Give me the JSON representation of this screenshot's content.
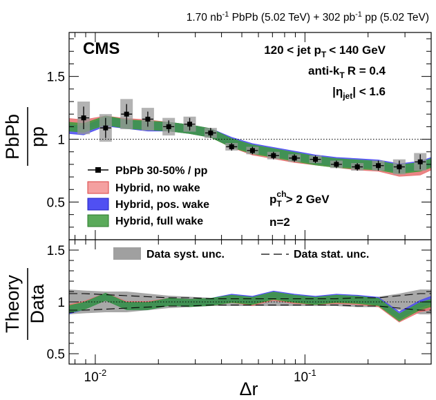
{
  "header": {
    "lumi_pbpb": "1.70",
    "unit1": "nb",
    "exp1": "-1",
    "sys1": "PbPb (5.02 TeV) +",
    "lumi_pp": "302",
    "unit2": "pb",
    "exp2": "-1",
    "sys2": "pp (5.02 TeV)"
  },
  "labels": {
    "cms": "CMS",
    "jet_pt_a": "120 < jet p",
    "jet_pt_sub": "T",
    "jet_pt_b": "< 140 GeV",
    "algo_a": "anti-k",
    "algo_sub": "T",
    "algo_b": "R = 0.4",
    "eta_a": "|η",
    "eta_sub": "jet",
    "eta_b": "| < 1.6",
    "track_a": "p",
    "track_sup": "ch",
    "track_sub": "T",
    "track_b": "> 2 GeV",
    "n": "n=2"
  },
  "legend_top": [
    {
      "label": "PbPb 30-50% / pp",
      "kind": "marker",
      "color": "#000000"
    },
    {
      "label": "Hybrid, no wake",
      "kind": "box",
      "color": "#f08080"
    },
    {
      "label": "Hybrid, pos. wake",
      "kind": "box",
      "color": "#4040ee"
    },
    {
      "label": "Hybrid, full wake",
      "kind": "box",
      "color": "#3a9a3a"
    }
  ],
  "legend_bottom": {
    "syst": "Data syst. unc.",
    "stat": "Data stat. unc."
  },
  "chart_data": [
    {
      "type": "line",
      "panel": "top",
      "ylabel_num": "PbPb",
      "ylabel_den": "pp",
      "xscale": "log",
      "xlim": [
        0.0075,
        0.4
      ],
      "ylim": [
        0.2,
        1.85
      ],
      "yticks": [
        "0.5",
        "1",
        "1.5"
      ],
      "reference_line": 1,
      "data": {
        "x": [
          0.0088,
          0.0112,
          0.0141,
          0.0178,
          0.0224,
          0.0282,
          0.0355,
          0.0447,
          0.0562,
          0.0708,
          0.0891,
          0.1122,
          0.1413,
          0.1778,
          0.2239,
          0.2818,
          0.3548
        ],
        "y": [
          1.17,
          1.09,
          1.2,
          1.16,
          1.1,
          1.12,
          1.05,
          0.94,
          0.91,
          0.87,
          0.85,
          0.84,
          0.8,
          0.78,
          0.79,
          0.78,
          0.82
        ],
        "stat": [
          0.09,
          0.08,
          0.08,
          0.06,
          0.05,
          0.05,
          0.04,
          0.03,
          0.03,
          0.03,
          0.03,
          0.03,
          0.03,
          0.03,
          0.04,
          0.05,
          0.06
        ],
        "syst": [
          0.13,
          0.11,
          0.12,
          0.09,
          0.07,
          0.06,
          0.04,
          0.03,
          0.03,
          0.03,
          0.03,
          0.03,
          0.03,
          0.03,
          0.04,
          0.06,
          0.07
        ]
      },
      "series": [
        {
          "name": "Hybrid, no wake",
          "color": "#e87070",
          "x": [
            0.0075,
            0.0088,
            0.0112,
            0.0141,
            0.0178,
            0.0224,
            0.0282,
            0.0355,
            0.0447,
            0.0562,
            0.0708,
            0.0891,
            0.1122,
            0.1413,
            0.1778,
            0.2239,
            0.2818,
            0.3548,
            0.4
          ],
          "values": [
            1.13,
            1.12,
            1.15,
            1.13,
            1.12,
            1.1,
            1.08,
            1.05,
            0.97,
            0.91,
            0.88,
            0.85,
            0.83,
            0.81,
            0.79,
            0.78,
            0.74,
            0.75,
            0.79
          ],
          "band": 0.035
        },
        {
          "name": "Hybrid, pos. wake",
          "color": "#4a4af0",
          "x": [
            0.0075,
            0.0088,
            0.0112,
            0.0141,
            0.0178,
            0.0224,
            0.0282,
            0.0355,
            0.0447,
            0.0562,
            0.0708,
            0.0891,
            0.1122,
            0.1413,
            0.1778,
            0.2239,
            0.2818,
            0.3548,
            0.4
          ],
          "values": [
            1.08,
            1.07,
            1.14,
            1.12,
            1.1,
            1.1,
            1.08,
            1.05,
            0.98,
            0.93,
            0.9,
            0.87,
            0.84,
            0.82,
            0.81,
            0.8,
            0.77,
            0.79,
            0.82
          ],
          "band": 0.035
        },
        {
          "name": "Hybrid, full wake",
          "color": "#3c9c3c",
          "x": [
            0.0075,
            0.0088,
            0.0112,
            0.0141,
            0.0178,
            0.0224,
            0.0282,
            0.0355,
            0.0447,
            0.0562,
            0.0708,
            0.0891,
            0.1122,
            0.1413,
            0.1778,
            0.2239,
            0.2818,
            0.3548,
            0.4
          ],
          "values": [
            1.1,
            1.09,
            1.15,
            1.12,
            1.11,
            1.1,
            1.08,
            1.05,
            0.97,
            0.92,
            0.89,
            0.86,
            0.83,
            0.81,
            0.8,
            0.79,
            0.76,
            0.78,
            0.81
          ],
          "band": 0.035
        }
      ]
    },
    {
      "type": "line",
      "panel": "bottom",
      "ylabel_num": "Theory",
      "ylabel_den": "Data",
      "xlabel": "Δr",
      "xscale": "log",
      "xlim": [
        0.0075,
        0.4
      ],
      "ylim": [
        0.4,
        1.6
      ],
      "yticks": [
        "0.5",
        "1",
        "1.5"
      ],
      "xticks": [
        {
          "value": 0.01,
          "base": "10",
          "exp": "-2"
        },
        {
          "value": 0.1,
          "base": "10",
          "exp": "-1"
        }
      ],
      "reference_line": 1,
      "syst_band": {
        "x": [
          0.0075,
          0.0088,
          0.0112,
          0.0141,
          0.0178,
          0.0224,
          0.0282,
          0.0355,
          0.0447,
          0.0562,
          0.0708,
          0.0891,
          0.1122,
          0.1413,
          0.1778,
          0.2239,
          0.2818,
          0.3548,
          0.4
        ],
        "upper": [
          1.12,
          1.11,
          1.1,
          1.1,
          1.08,
          1.06,
          1.05,
          1.04,
          1.04,
          1.04,
          1.04,
          1.04,
          1.04,
          1.04,
          1.05,
          1.05,
          1.08,
          1.12,
          1.12
        ],
        "lower": [
          0.88,
          0.89,
          0.9,
          0.9,
          0.92,
          0.94,
          0.95,
          0.96,
          0.96,
          0.96,
          0.96,
          0.96,
          0.96,
          0.96,
          0.95,
          0.95,
          0.92,
          0.88,
          0.88
        ]
      },
      "stat_band": {
        "x": [
          0.0075,
          0.0088,
          0.0112,
          0.0141,
          0.0178,
          0.0224,
          0.0282,
          0.0355,
          0.0447,
          0.0562,
          0.0708,
          0.0891,
          0.1122,
          0.1413,
          0.1778,
          0.2239,
          0.2818,
          0.3548,
          0.4
        ],
        "upper": [
          1.08,
          1.08,
          1.07,
          1.06,
          1.05,
          1.04,
          1.04,
          1.03,
          1.03,
          1.03,
          1.03,
          1.03,
          1.03,
          1.03,
          1.04,
          1.04,
          1.06,
          1.08,
          1.08
        ],
        "lower": [
          0.92,
          0.92,
          0.93,
          0.94,
          0.95,
          0.96,
          0.96,
          0.97,
          0.97,
          0.97,
          0.97,
          0.97,
          0.97,
          0.97,
          0.96,
          0.96,
          0.94,
          0.92,
          0.92
        ]
      },
      "series": [
        {
          "name": "Hybrid, no wake",
          "color": "#e87070",
          "x": [
            0.0075,
            0.0088,
            0.0112,
            0.0141,
            0.0178,
            0.0224,
            0.0282,
            0.0355,
            0.0447,
            0.0562,
            0.0708,
            0.0891,
            0.1122,
            0.1413,
            0.1778,
            0.2239,
            0.2818,
            0.3548,
            0.4
          ],
          "values": [
            0.94,
            0.97,
            1.05,
            0.97,
            0.97,
            1.0,
            0.99,
            1.0,
            1.03,
            1.0,
            1.05,
            1.02,
            1.01,
            1.02,
            1.01,
            0.99,
            0.84,
            0.94,
            0.96
          ],
          "band": 0.035
        },
        {
          "name": "Hybrid, pos. wake",
          "color": "#4a4af0",
          "x": [
            0.0075,
            0.0088,
            0.0112,
            0.0141,
            0.0178,
            0.0224,
            0.0282,
            0.0355,
            0.0447,
            0.0562,
            0.0708,
            0.0891,
            0.1122,
            0.1413,
            0.1778,
            0.2239,
            0.2818,
            0.3548,
            0.4
          ],
          "values": [
            0.92,
            0.96,
            1.05,
            0.96,
            0.96,
            1.0,
            0.99,
            1.0,
            1.04,
            1.02,
            1.07,
            1.04,
            1.02,
            1.04,
            1.03,
            1.01,
            0.87,
            0.98,
            1.02
          ],
          "band": 0.035
        },
        {
          "name": "Hybrid, full wake",
          "color": "#3c9c3c",
          "x": [
            0.0075,
            0.0088,
            0.0112,
            0.0141,
            0.0178,
            0.0224,
            0.0282,
            0.0355,
            0.0447,
            0.0562,
            0.0708,
            0.0891,
            0.1122,
            0.1413,
            0.1778,
            0.2239,
            0.2818,
            0.3548,
            0.4
          ],
          "values": [
            0.93,
            0.96,
            1.05,
            0.96,
            0.96,
            1.0,
            0.99,
            1.0,
            1.03,
            1.01,
            1.06,
            1.03,
            1.01,
            1.03,
            1.02,
            1.0,
            0.85,
            0.96,
            0.99
          ],
          "band": 0.035
        }
      ]
    }
  ]
}
